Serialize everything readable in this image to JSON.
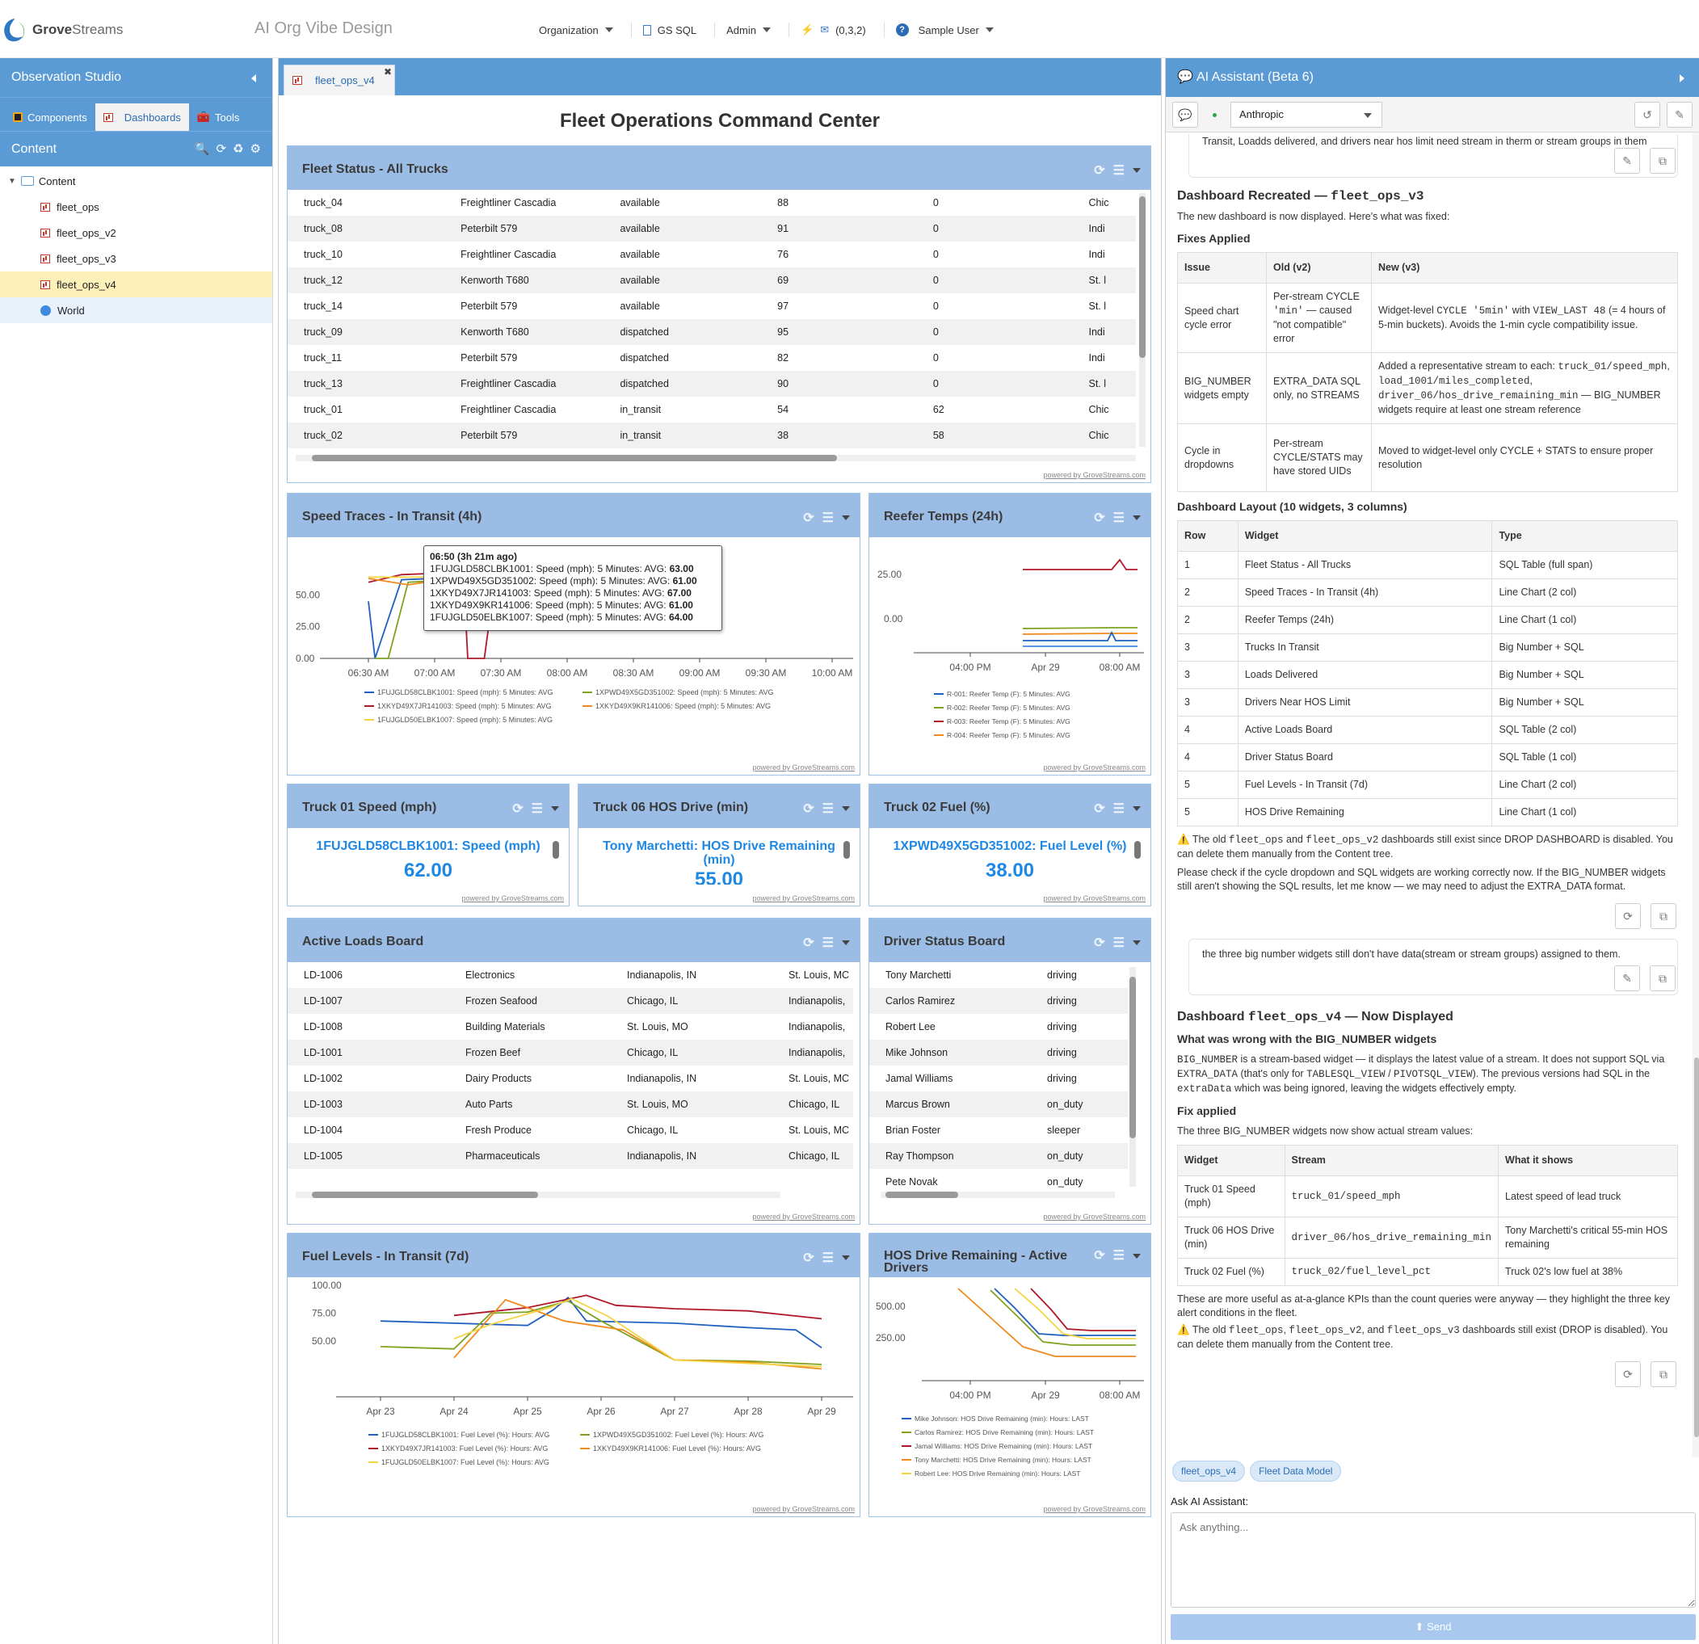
{
  "app": {
    "logo_main": "Grove",
    "logo_sub": "Streams",
    "org_title": "AI Org Vibe Design"
  },
  "topnav": {
    "organization": "Organization",
    "gs_sql": "GS SQL",
    "admin": "Admin",
    "notifications": "(0,3,2)",
    "user": "Sample User"
  },
  "left": {
    "title": "Observation Studio",
    "tabs": [
      "Components",
      "Dashboards",
      "Tools"
    ],
    "content_title": "Content",
    "tree": {
      "root": "Content",
      "items": [
        "fleet_ops",
        "fleet_ops_v2",
        "fleet_ops_v3",
        "fleet_ops_v4"
      ],
      "world": "World"
    }
  },
  "center": {
    "tab": "fleet_ops_v4",
    "title": "Fleet Operations Command Center",
    "powered": "powered by GroveStreams.com",
    "fleet_status": {
      "title": "Fleet Status - All Trucks",
      "rows": [
        [
          "truck_04",
          "Freightliner Cascadia",
          "available",
          "88",
          "0",
          "Chic"
        ],
        [
          "truck_08",
          "Peterbilt 579",
          "available",
          "91",
          "0",
          "Indi"
        ],
        [
          "truck_10",
          "Freightliner Cascadia",
          "available",
          "76",
          "0",
          "Indi"
        ],
        [
          "truck_12",
          "Kenworth T680",
          "available",
          "69",
          "0",
          "St. l"
        ],
        [
          "truck_14",
          "Peterbilt 579",
          "available",
          "97",
          "0",
          "St. l"
        ],
        [
          "truck_09",
          "Kenworth T680",
          "dispatched",
          "95",
          "0",
          "Indi"
        ],
        [
          "truck_11",
          "Peterbilt 579",
          "dispatched",
          "82",
          "0",
          "Indi"
        ],
        [
          "truck_13",
          "Freightliner Cascadia",
          "dispatched",
          "90",
          "0",
          "St. l"
        ],
        [
          "truck_01",
          "Freightliner Cascadia",
          "in_transit",
          "54",
          "62",
          "Chic"
        ],
        [
          "truck_02",
          "Peterbilt 579",
          "in_transit",
          "38",
          "58",
          "Chic"
        ]
      ]
    },
    "speed": {
      "title": "Speed Traces - In Transit (4h)",
      "tooltip": {
        "head": "06:50 (3h 21m ago)",
        "lines": [
          {
            "t": "1FUJGLD58CLBK1001: Speed (mph): 5 Minutes: AVG: ",
            "v": "63.00"
          },
          {
            "t": "1XPWD49X5GD351002: Speed (mph): 5 Minutes: AVG: ",
            "v": "61.00"
          },
          {
            "t": "1XKYD49X7JR141003: Speed (mph): 5 Minutes: AVG: ",
            "v": "67.00"
          },
          {
            "t": "1XKYD49X9KR141006: Speed (mph): 5 Minutes: AVG: ",
            "v": "61.00"
          },
          {
            "t": "1FUJGLD50ELBK1007: Speed (mph): 5 Minutes: AVG: ",
            "v": "64.00"
          }
        ]
      }
    },
    "reefer": {
      "title": "Reefer Temps (24h)"
    },
    "truck01": {
      "title": "Truck 01 Speed (mph)",
      "label": "1FUJGLD58CLBK1001: Speed (mph)",
      "value": "62.00"
    },
    "truck06": {
      "title": "Truck 06 HOS Drive (min)",
      "label": "Tony Marchetti: HOS Drive Remaining (min)",
      "value": "55.00"
    },
    "truck02": {
      "title": "Truck 02 Fuel (%)",
      "label": "1XPWD49X5GD351002: Fuel Level (%)",
      "value": "38.00"
    },
    "loads": {
      "title": "Active Loads Board",
      "rows": [
        [
          "LD-1006",
          "Electronics",
          "Indianapolis, IN",
          "St. Louis, MC"
        ],
        [
          "LD-1007",
          "Frozen Seafood",
          "Chicago, IL",
          "Indianapolis,"
        ],
        [
          "LD-1008",
          "Building Materials",
          "St. Louis, MO",
          "Indianapolis,"
        ],
        [
          "LD-1001",
          "Frozen Beef",
          "Chicago, IL",
          "Indianapolis,"
        ],
        [
          "LD-1002",
          "Dairy Products",
          "Indianapolis, IN",
          "St. Louis, MC"
        ],
        [
          "LD-1003",
          "Auto Parts",
          "St. Louis, MO",
          "Chicago, IL"
        ],
        [
          "LD-1004",
          "Fresh Produce",
          "Chicago, IL",
          "St. Louis, MC"
        ],
        [
          "LD-1005",
          "Pharmaceuticals",
          "Indianapolis, IN",
          "Chicago, IL"
        ]
      ]
    },
    "drivers": {
      "title": "Driver Status Board",
      "rows": [
        [
          "Tony Marchetti",
          "driving"
        ],
        [
          "Carlos Ramirez",
          "driving"
        ],
        [
          "Robert Lee",
          "driving"
        ],
        [
          "Mike Johnson",
          "driving"
        ],
        [
          "Jamal Williams",
          "driving"
        ],
        [
          "Marcus Brown",
          "on_duty"
        ],
        [
          "Brian Foster",
          "sleeper"
        ],
        [
          "Ray Thompson",
          "on_duty"
        ],
        [
          "Pete Novak",
          "on_duty"
        ]
      ]
    },
    "fuel": {
      "title": "Fuel Levels - In Transit (7d)"
    },
    "hos": {
      "title": "HOS Drive Remaining - Active Drivers"
    }
  },
  "chart_data": [
    {
      "type": "line",
      "title": "Speed Traces - In Transit (4h)",
      "x": [
        "06:30 AM",
        "07:00 AM",
        "07:30 AM",
        "08:00 AM",
        "08:30 AM",
        "09:00 AM",
        "09:30 AM",
        "10:00 AM"
      ],
      "yticks": [
        "0.00",
        "25.00",
        "50.00"
      ],
      "ylim": [
        0,
        70
      ],
      "series": [
        {
          "name": "1FUJGLD58CLBK1001: Speed (mph): 5 Minutes: AVG",
          "color": "#1f5fbf",
          "points": [
            [
              0,
              45
            ],
            [
              0.1,
              0
            ],
            [
              0.5,
              62
            ],
            [
              1.0,
              63
            ],
            [
              1.5,
              60
            ],
            [
              2.0,
              62
            ],
            [
              3.0,
              61
            ],
            [
              3.3,
              62
            ]
          ]
        },
        {
          "name": "1XPWD49X5GD351002: Speed (mph): 5 Minutes: AVG",
          "color": "#7fa31f",
          "points": [
            [
              0.1,
              0
            ],
            [
              0.3,
              0
            ],
            [
              0.6,
              60
            ],
            [
              1.0,
              61
            ],
            [
              2.0,
              60
            ],
            [
              3.0,
              61
            ],
            [
              3.3,
              61
            ]
          ]
        },
        {
          "name": "1XKYD49X7JR141003: Speed (mph): 5 Minutes: AVG",
          "color": "#b0182a",
          "points": [
            [
              0,
              60
            ],
            [
              0.5,
              66
            ],
            [
              1.0,
              67
            ],
            [
              1.45,
              50
            ],
            [
              1.5,
              0
            ],
            [
              1.75,
              0
            ],
            [
              1.9,
              58
            ],
            [
              2.5,
              62
            ],
            [
              3.3,
              60
            ]
          ]
        },
        {
          "name": "1XKYD49X9KR141006: Speed (mph): 5 Minutes: AVG",
          "color": "#f08a1e",
          "points": [
            [
              0,
              63
            ],
            [
              0.6,
              58
            ],
            [
              1.0,
              61
            ],
            [
              2.0,
              63
            ],
            [
              3.3,
              62
            ]
          ]
        },
        {
          "name": "1FUJGLD50ELBK1007: Speed (mph): 5 Minutes: AVG",
          "color": "#f5d442",
          "points": [
            [
              0,
              64
            ],
            [
              1.0,
              64
            ],
            [
              2.0,
              65
            ],
            [
              3.3,
              64
            ]
          ]
        }
      ]
    },
    {
      "type": "line",
      "title": "Reefer Temps (24h)",
      "x": [
        "04:00 PM",
        "Apr 29",
        "08:00 AM"
      ],
      "yticks": [
        "0.00",
        "25.00"
      ],
      "series": [
        {
          "name": "R-001: Reefer Temp (F): 5 Minutes: AVG",
          "color": "#1f5fbf"
        },
        {
          "name": "R-002: Reefer Temp (F): 5 Minutes: AVG",
          "color": "#7fa31f"
        },
        {
          "name": "R-003: Reefer Temp (F): 5 Minutes: AVG",
          "color": "#b0182a"
        },
        {
          "name": "R-004: Reefer Temp (F): 5 Minutes: AVG",
          "color": "#f08a1e"
        }
      ]
    },
    {
      "type": "line",
      "title": "Fuel Levels - In Transit (7d)",
      "x": [
        "Apr 23",
        "Apr 24",
        "Apr 25",
        "Apr 26",
        "Apr 27",
        "Apr 28",
        "Apr 29"
      ],
      "yticks": [
        "50.00",
        "75.00",
        "100.00"
      ],
      "ylim": [
        0,
        100
      ],
      "series": [
        {
          "name": "1FUJGLD58CLBK1001: Fuel Level (%): Hours: AVG",
          "color": "#1f5fbf",
          "points": [
            [
              0,
              68
            ],
            [
              1,
              66
            ],
            [
              2,
              64
            ],
            [
              2.35,
              78
            ],
            [
              2.55,
              89
            ],
            [
              2.8,
              68
            ],
            [
              4,
              66
            ],
            [
              5,
              62
            ],
            [
              5.65,
              60
            ],
            [
              6,
              44
            ]
          ]
        },
        {
          "name": "1XPWD49X5GD351002: Fuel Level (%): Hours: AVG",
          "color": "#7fa31f",
          "points": [
            [
              0,
              45
            ],
            [
              1,
              43
            ],
            [
              1.5,
              75
            ],
            [
              2,
              76
            ],
            [
              2.55,
              86
            ],
            [
              3,
              68
            ],
            [
              4,
              33
            ],
            [
              5,
              32
            ],
            [
              6,
              29
            ]
          ]
        },
        {
          "name": "1XKYD49X7JR141003: Fuel Level (%): Hours: AVG",
          "color": "#b0182a",
          "points": [
            [
              1,
              73
            ],
            [
              2,
              80
            ],
            [
              2.8,
              91
            ],
            [
              3.2,
              82
            ],
            [
              4,
              79
            ],
            [
              5,
              77
            ],
            [
              6,
              70
            ]
          ]
        },
        {
          "name": "1XKYD49X9KR141006: Fuel Level (%): Hours: AVG",
          "color": "#f08a1e",
          "points": [
            [
              1,
              35
            ],
            [
              1.7,
              87
            ],
            [
              2.5,
              68
            ],
            [
              3.3,
              60
            ],
            [
              4,
              33
            ],
            [
              5,
              31
            ],
            [
              6,
              25
            ]
          ]
        },
        {
          "name": "1FUJGLD50ELBK1007: Fuel Level (%): Hours: AVG",
          "color": "#f5d442",
          "points": [
            [
              1,
              52
            ],
            [
              1.5,
              65
            ],
            [
              2.3,
              80
            ],
            [
              2.6,
              88
            ],
            [
              3.1,
              72
            ],
            [
              4,
              33
            ],
            [
              5,
              30
            ],
            [
              6,
              27
            ]
          ]
        }
      ]
    },
    {
      "type": "line",
      "title": "HOS Drive Remaining - Active Drivers",
      "x": [
        "04:00 PM",
        "Apr 29",
        "08:00 AM"
      ],
      "yticks": [
        "250.00",
        "500.00"
      ],
      "series": [
        {
          "name": "Mike Johnson: HOS Drive Remaining (min): Hours: LAST",
          "color": "#1f5fbf"
        },
        {
          "name": "Carlos Ramirez: HOS Drive Remaining (min): Hours: LAST",
          "color": "#7fa31f"
        },
        {
          "name": "Jamal Williams: HOS Drive Remaining (min): Hours: LAST",
          "color": "#b0182a"
        },
        {
          "name": "Tony Marchetti: HOS Drive Remaining (min): Hours: LAST",
          "color": "#f08a1e"
        },
        {
          "name": "Robert Lee: HOS Drive Remaining (min): Hours: LAST",
          "color": "#f5d442"
        }
      ]
    }
  ],
  "assistant": {
    "title": "AI Assistant (Beta 6)",
    "provider": "Anthropic",
    "msg0": "Transit, Loadds delivered, and drivers near hos limit need stream in therm or stream groups in them",
    "h_recreated": "Dashboard Recreated — ",
    "h_recreated_code": "fleet_ops_v3",
    "p_displayed": "The new dashboard is now displayed. Here's what was fixed:",
    "h_fixes": "Fixes Applied",
    "fix_headers": [
      "Issue",
      "Old (v2)",
      "New (v3)"
    ],
    "h_layout": "Dashboard Layout (10 widgets, 3 columns)",
    "layout_headers": [
      "Row",
      "Widget",
      "Type"
    ],
    "layout_rows": [
      [
        "1",
        "Fleet Status - All Trucks",
        "SQL Table (full span)"
      ],
      [
        "2",
        "Speed Traces - In Transit (4h)",
        "Line Chart (2 col)"
      ],
      [
        "2",
        "Reefer Temps (24h)",
        "Line Chart (1 col)"
      ],
      [
        "3",
        "Trucks In Transit",
        "Big Number + SQL"
      ],
      [
        "3",
        "Loads Delivered",
        "Big Number + SQL"
      ],
      [
        "3",
        "Drivers Near HOS Limit",
        "Big Number + SQL"
      ],
      [
        "4",
        "Active Loads Board",
        "SQL Table (2 col)"
      ],
      [
        "4",
        "Driver Status Board",
        "SQL Table (1 col)"
      ],
      [
        "5",
        "Fuel Levels - In Transit (7d)",
        "Line Chart (2 col)"
      ],
      [
        "5",
        "HOS Drive Remaining",
        "Line Chart (1 col)"
      ]
    ],
    "user_msg": "the three big number widgets still don't have data(stream or stream groups) assigned to them.",
    "h_v4": "Dashboard ",
    "h_v4_code": "fleet_ops_v4",
    "h_v4_tail": " — Now Displayed",
    "h_wrong": "What was wrong with the BIG_NUMBER widgets",
    "h_fix": "Fix applied",
    "p_three": "The three BIG_NUMBER widgets now show actual stream values:",
    "kpi_headers": [
      "Widget",
      "Stream",
      "What it shows"
    ],
    "kpi_rows": [
      [
        "Truck 01 Speed (mph)",
        "truck_01/speed_mph",
        "Latest speed of lead truck"
      ],
      [
        "Truck 06 HOS Drive (min)",
        "driver_06/hos_drive_remaining_min",
        "Tony Marchetti's critical 55-min HOS remaining"
      ],
      [
        "Truck 02 Fuel (%)",
        "truck_02/fuel_level_pct",
        "Truck 02's low fuel at 38%"
      ]
    ],
    "p_useful": "These are more useful as at-a-glance KPIs than the count queries were anyway — they highlight the three key alert conditions in the fleet.",
    "chips": [
      "fleet_ops_v4",
      "Fleet Data Model"
    ],
    "ask_label": "Ask AI Assistant:",
    "ask_placeholder": "Ask anything...",
    "send": "Send"
  }
}
